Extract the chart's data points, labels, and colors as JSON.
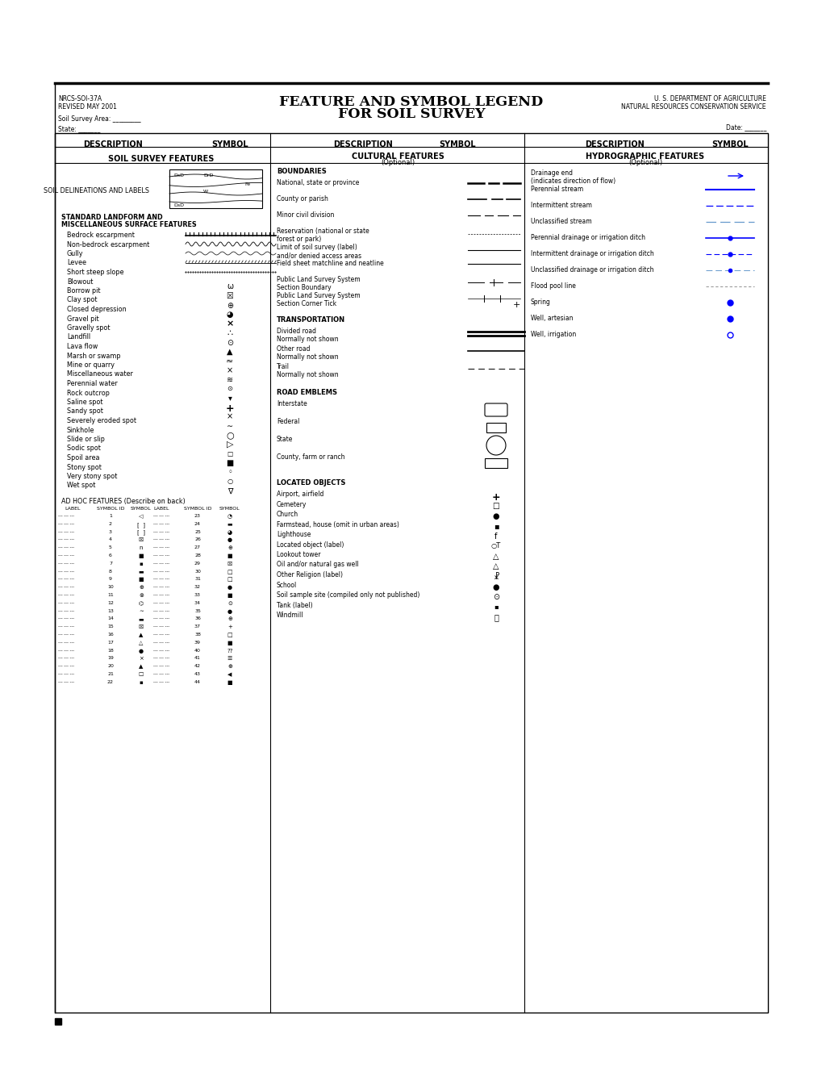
{
  "header_left_line1": "NRCS-SOI-37A",
  "header_left_line2": "REVISED MAY 2001",
  "header_left_line3": "Soil Survey Area: _________",
  "header_left_line4": "State: _______",
  "header_right_line1": "U. S. DEPARTMENT OF AGRICULTURE",
  "header_right_line2": "NATURAL RESOURCES CONSERVATION SERVICE",
  "header_right_line3": "Date: _______",
  "landform_items": [
    "Bedrock escarpment",
    "Non-bedrock escarpment",
    "Gully",
    "Levee",
    "Short steep slope",
    "Blowout",
    "Borrow pit",
    "Clay spot",
    "Closed depression",
    "Gravel pit",
    "Gravelly spot",
    "Landfill",
    "Lava flow",
    "Marsh or swamp",
    "Mine or quarry",
    "Miscellaneous water",
    "Perennial water",
    "Rock outcrop",
    "Saline spot",
    "Sandy spot",
    "Severely eroded spot",
    "Sinkhole",
    "Slide or slip",
    "Sodic spot",
    "Spoil area",
    "Stony spot",
    "Very stony spot",
    "Wet spot"
  ],
  "adhoc_ids_left": [
    1,
    2,
    3,
    4,
    5,
    6,
    7,
    8,
    9,
    10,
    11,
    12,
    13,
    14,
    15,
    16,
    17,
    18,
    19,
    20,
    21,
    22
  ],
  "adhoc_ids_right": [
    23,
    24,
    25,
    26,
    27,
    28,
    29,
    30,
    31,
    32,
    33,
    34,
    35,
    36,
    37,
    38,
    39,
    40,
    41,
    42,
    43,
    44
  ],
  "boundaries_items": [
    "National, state or province",
    "County or parish",
    "Minor civil division",
    "Reservation (national or state\nforest or park)",
    "Limit of soil survey (label)\nand/or denied access areas",
    "Field sheet matchline and neatline",
    "Public Land Survey System\nSection Boundary",
    "Public Land Survey System\nSection Corner Tick"
  ],
  "transportation_items": [
    "Divided road\nNormally not shown",
    "Other road\nNormally not shown",
    "Trail\nNormally not shown"
  ],
  "road_emblems_items": [
    "Interstate",
    "Federal",
    "State",
    "County, farm or ranch"
  ],
  "located_objects_items": [
    "Airport, airfield",
    "Cemetery",
    "Church",
    "Farmstead, house (omit in urban areas)",
    "Lighthouse",
    "Located object (label)",
    "Lookout tower",
    "Oil and/or natural gas well",
    "Other Religion (label)",
    "School",
    "Soil sample site (compiled only not published)",
    "Tank (label)",
    "Windmill"
  ],
  "hydro_items": [
    "Drainage end\n(indicates direction of flow)",
    "Perennial stream",
    "Intermittent stream",
    "Unclassified stream",
    "Perennial drainage or irrigation ditch",
    "Intermittent drainage or irrigation ditch",
    "Unclassified drainage or irrigation ditch",
    "Flood pool line",
    "Spring",
    "Well, artesian",
    "Well, irrigation"
  ]
}
